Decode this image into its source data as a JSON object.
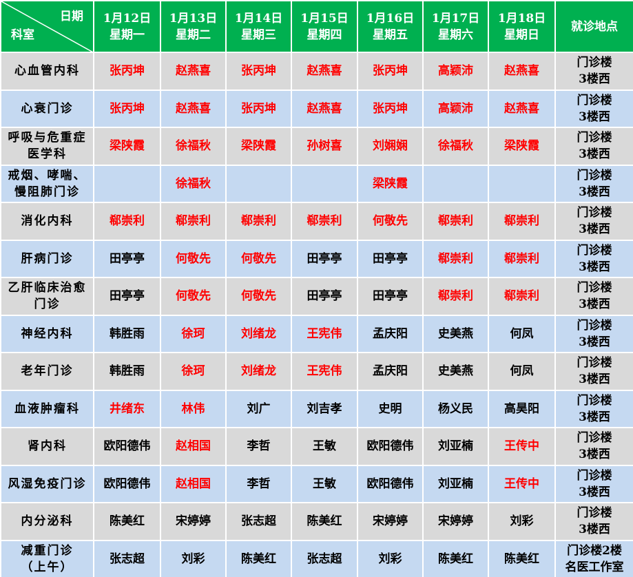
{
  "header": {
    "corner_top": "日期",
    "corner_bottom": "科室",
    "dates": [
      {
        "date": "1月12日",
        "weekday": "星期一"
      },
      {
        "date": "1月13日",
        "weekday": "星期二"
      },
      {
        "date": "1月14日",
        "weekday": "星期三"
      },
      {
        "date": "1月15日",
        "weekday": "星期四"
      },
      {
        "date": "1月16日",
        "weekday": "星期五"
      },
      {
        "date": "1月17日",
        "weekday": "星期六"
      },
      {
        "date": "1月18日",
        "weekday": "星期日"
      }
    ],
    "location": "就诊地点"
  },
  "rows": [
    {
      "dept": [
        "心血管内科"
      ],
      "cells": [
        {
          "name": "张丙坤",
          "color": "#ff0000"
        },
        {
          "name": "赵燕喜",
          "color": "#ff0000"
        },
        {
          "name": "张丙坤",
          "color": "#ff0000"
        },
        {
          "name": "赵燕喜",
          "color": "#ff0000"
        },
        {
          "name": "张丙坤",
          "color": "#ff0000"
        },
        {
          "name": "高颖沛",
          "color": "#ff0000"
        },
        {
          "name": "赵燕喜",
          "color": "#ff0000"
        }
      ],
      "location": [
        "门诊楼",
        "3楼西"
      ]
    },
    {
      "dept": [
        "心衰门诊"
      ],
      "cells": [
        {
          "name": "张丙坤",
          "color": "#ff0000"
        },
        {
          "name": "赵燕喜",
          "color": "#ff0000"
        },
        {
          "name": "张丙坤",
          "color": "#ff0000"
        },
        {
          "name": "赵燕喜",
          "color": "#ff0000"
        },
        {
          "name": "张丙坤",
          "color": "#ff0000"
        },
        {
          "name": "高颖沛",
          "color": "#ff0000"
        },
        {
          "name": "赵燕喜",
          "color": "#ff0000"
        }
      ],
      "location": [
        "门诊楼",
        "3楼西"
      ]
    },
    {
      "dept": [
        "呼吸与危重症",
        "医学科"
      ],
      "cells": [
        {
          "name": "梁陕霞",
          "color": "#ff0000"
        },
        {
          "name": "徐福秋",
          "color": "#ff0000"
        },
        {
          "name": "梁陕霞",
          "color": "#ff0000"
        },
        {
          "name": "孙树喜",
          "color": "#ff0000"
        },
        {
          "name": "刘娴娴",
          "color": "#ff0000"
        },
        {
          "name": "徐福秋",
          "color": "#ff0000"
        },
        {
          "name": "梁陕霞",
          "color": "#ff0000"
        }
      ],
      "location": [
        "门诊楼",
        "3楼西"
      ]
    },
    {
      "dept": [
        "戒烟、哮喘、",
        "慢阻肺门诊"
      ],
      "cells": [
        null,
        {
          "name": "徐福秋",
          "color": "#ff0000"
        },
        null,
        null,
        {
          "name": "梁陕霞",
          "color": "#ff0000"
        },
        null,
        null
      ],
      "location": [
        "门诊楼",
        "3楼西"
      ]
    },
    {
      "dept": [
        "消化内科"
      ],
      "cells": [
        {
          "name": "郗崇利",
          "color": "#ff0000"
        },
        {
          "name": "郗崇利",
          "color": "#ff0000"
        },
        {
          "name": "郗崇利",
          "color": "#ff0000"
        },
        {
          "name": "郗崇利",
          "color": "#ff0000"
        },
        {
          "name": "何敬先",
          "color": "#ff0000"
        },
        {
          "name": "郗崇利",
          "color": "#ff0000"
        },
        {
          "name": "郗崇利",
          "color": "#ff0000"
        }
      ],
      "location": [
        "门诊楼",
        "3楼西"
      ]
    },
    {
      "dept": [
        "肝病门诊"
      ],
      "cells": [
        {
          "name": "田亭亭",
          "color": "#000000"
        },
        {
          "name": "何敬先",
          "color": "#ff0000"
        },
        {
          "name": "何敬先",
          "color": "#ff0000"
        },
        {
          "name": "田亭亭",
          "color": "#000000"
        },
        {
          "name": "田亭亭",
          "color": "#000000"
        },
        {
          "name": "郗崇利",
          "color": "#ff0000"
        },
        {
          "name": "郗崇利",
          "color": "#ff0000"
        }
      ],
      "location": [
        "门诊楼",
        "3楼西"
      ]
    },
    {
      "dept": [
        "乙肝临床治愈",
        "门诊"
      ],
      "cells": [
        {
          "name": "田亭亭",
          "color": "#000000"
        },
        {
          "name": "何敬先",
          "color": "#ff0000"
        },
        {
          "name": "何敬先",
          "color": "#ff0000"
        },
        {
          "name": "田亭亭",
          "color": "#000000"
        },
        {
          "name": "田亭亭",
          "color": "#000000"
        },
        {
          "name": "郗崇利",
          "color": "#ff0000"
        },
        {
          "name": "郗崇利",
          "color": "#ff0000"
        }
      ],
      "location": [
        "门诊楼",
        "3楼西"
      ]
    },
    {
      "dept": [
        "神经内科"
      ],
      "cells": [
        {
          "name": "韩胜雨",
          "color": "#000000"
        },
        {
          "name": "徐珂",
          "color": "#ff0000"
        },
        {
          "name": "刘绪龙",
          "color": "#ff0000"
        },
        {
          "name": "王宪伟",
          "color": "#ff0000"
        },
        {
          "name": "孟庆阳",
          "color": "#000000"
        },
        {
          "name": "史美燕",
          "color": "#000000"
        },
        {
          "name": "何凤",
          "color": "#000000"
        }
      ],
      "location": [
        "门诊楼",
        "3楼西"
      ]
    },
    {
      "dept": [
        "老年门诊"
      ],
      "cells": [
        {
          "name": "韩胜雨",
          "color": "#000000"
        },
        {
          "name": "徐珂",
          "color": "#ff0000"
        },
        {
          "name": "刘绪龙",
          "color": "#ff0000"
        },
        {
          "name": "王宪伟",
          "color": "#ff0000"
        },
        {
          "name": "孟庆阳",
          "color": "#000000"
        },
        {
          "name": "史美燕",
          "color": "#000000"
        },
        {
          "name": "何凤",
          "color": "#000000"
        }
      ],
      "location": [
        "门诊楼",
        "3楼西"
      ]
    },
    {
      "dept": [
        "血液肿瘤科"
      ],
      "cells": [
        {
          "name": "井绪东",
          "color": "#ff0000"
        },
        {
          "name": "林伟",
          "color": "#ff0000"
        },
        {
          "name": "刘广",
          "color": "#000000"
        },
        {
          "name": "刘吉孝",
          "color": "#000000"
        },
        {
          "name": "史明",
          "color": "#000000"
        },
        {
          "name": "杨义民",
          "color": "#000000"
        },
        {
          "name": "高昊阳",
          "color": "#000000"
        }
      ],
      "location": [
        "门诊楼",
        "3楼西"
      ]
    },
    {
      "dept": [
        "肾内科"
      ],
      "cells": [
        {
          "name": "欧阳德伟",
          "color": "#000000"
        },
        {
          "name": "赵相国",
          "color": "#ff0000"
        },
        {
          "name": "李哲",
          "color": "#000000"
        },
        {
          "name": "王敏",
          "color": "#000000"
        },
        {
          "name": "欧阳德伟",
          "color": "#000000"
        },
        {
          "name": "刘亚楠",
          "color": "#000000"
        },
        {
          "name": "王传中",
          "color": "#ff0000"
        }
      ],
      "location": [
        "门诊楼",
        "3楼西"
      ]
    },
    {
      "dept": [
        "风湿免疫门诊"
      ],
      "cells": [
        {
          "name": "欧阳德伟",
          "color": "#000000"
        },
        {
          "name": "赵相国",
          "color": "#ff0000"
        },
        {
          "name": "李哲",
          "color": "#000000"
        },
        {
          "name": "王敏",
          "color": "#000000"
        },
        {
          "name": "欧阳德伟",
          "color": "#000000"
        },
        {
          "name": "刘亚楠",
          "color": "#000000"
        },
        {
          "name": "王传中",
          "color": "#ff0000"
        }
      ],
      "location": [
        "门诊楼",
        "3楼西"
      ]
    },
    {
      "dept": [
        "内分泌科"
      ],
      "cells": [
        {
          "name": "陈美红",
          "color": "#000000"
        },
        {
          "name": "宋婷婷",
          "color": "#000000"
        },
        {
          "name": "张志超",
          "color": "#000000"
        },
        {
          "name": "陈美红",
          "color": "#000000"
        },
        {
          "name": "宋婷婷",
          "color": "#000000"
        },
        {
          "name": "宋婷婷",
          "color": "#000000"
        },
        {
          "name": "刘彩",
          "color": "#000000"
        }
      ],
      "location": [
        "门诊楼",
        "3楼西"
      ]
    },
    {
      "dept": [
        "减重门诊",
        "（上午）"
      ],
      "cells": [
        {
          "name": "张志超",
          "color": "#000000"
        },
        {
          "name": "刘彩",
          "color": "#000000"
        },
        {
          "name": "陈美红",
          "color": "#000000"
        },
        {
          "name": "张志超",
          "color": "#000000"
        },
        {
          "name": "刘彩",
          "color": "#000000"
        },
        {
          "name": "陈美红",
          "color": "#000000"
        },
        {
          "name": "陈美红",
          "color": "#000000"
        }
      ],
      "location": [
        "门诊楼2楼",
        "名医工作室"
      ]
    }
  ]
}
